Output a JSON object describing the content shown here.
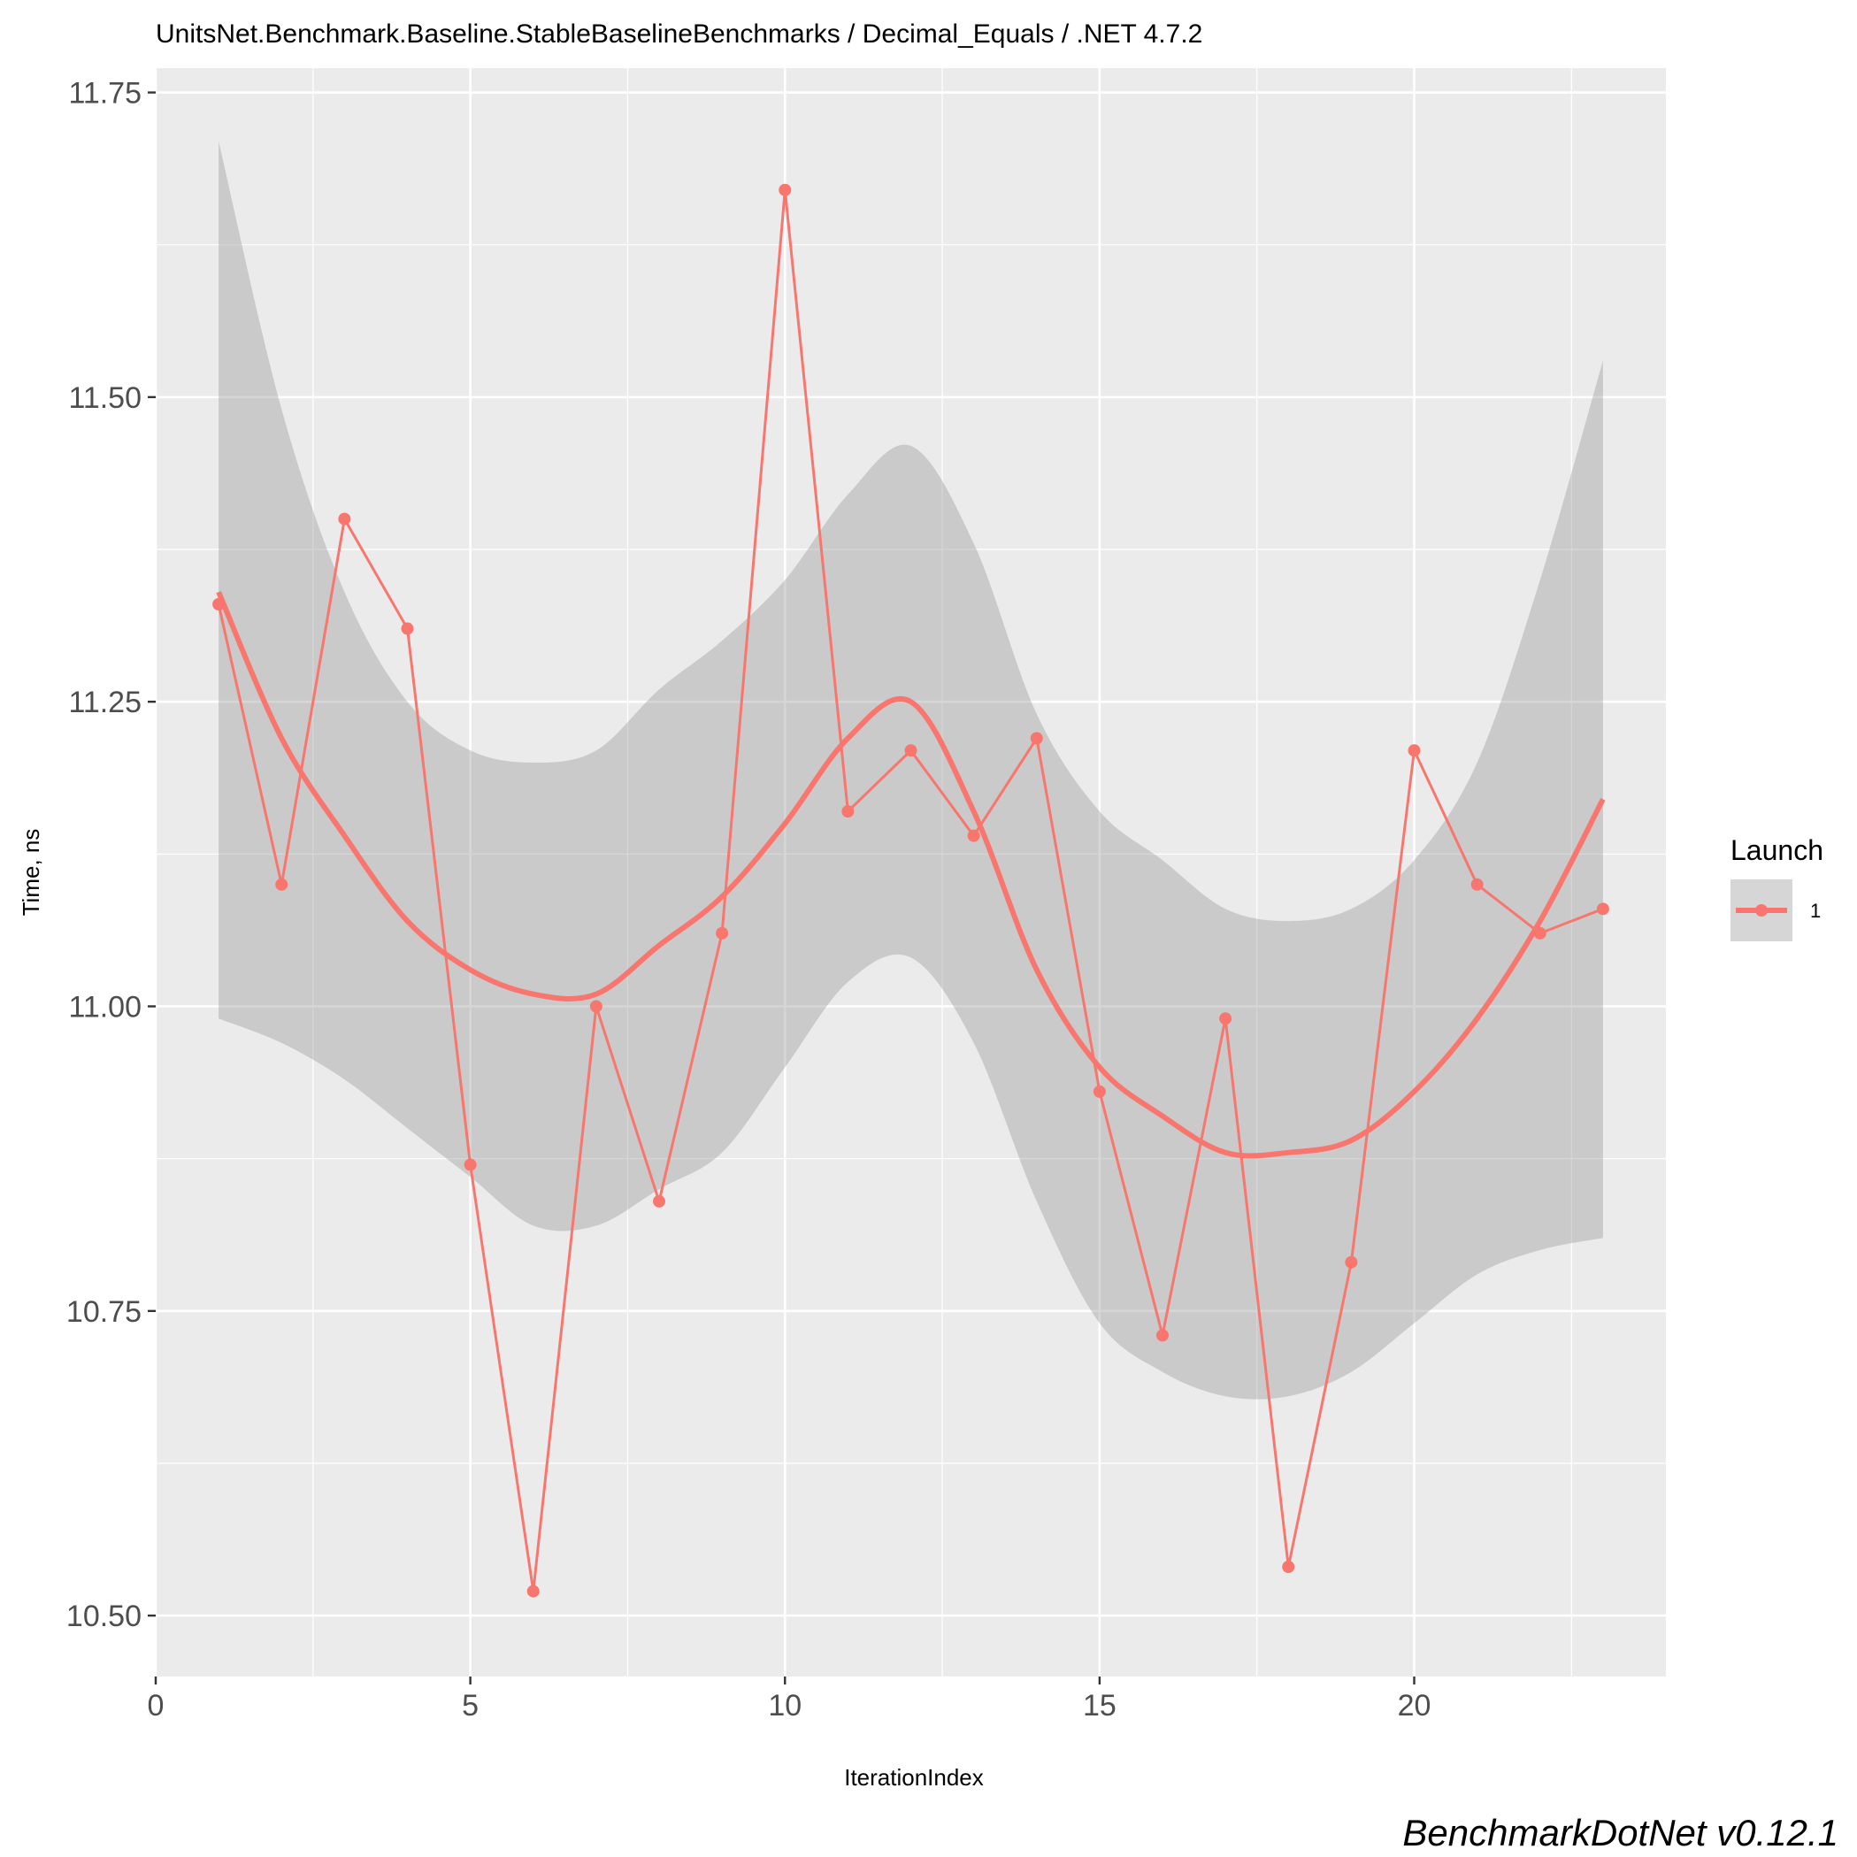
{
  "chart_data": {
    "type": "line",
    "title": "UnitsNet.Benchmark.Baseline.StableBaselineBenchmarks / Decimal_Equals / .NET 4.7.2",
    "xlabel": "IterationIndex",
    "ylabel": "Time, ns",
    "xlim": [
      0,
      24
    ],
    "ylim": [
      10.45,
      11.77
    ],
    "x_ticks": [
      0,
      5,
      10,
      15,
      20
    ],
    "x_tick_labels": [
      "0",
      "5",
      "10",
      "15",
      "20"
    ],
    "y_ticks": [
      10.5,
      10.75,
      11.0,
      11.25,
      11.5,
      11.75
    ],
    "y_tick_labels": [
      "10.50",
      "10.75",
      "11.00",
      "11.25",
      "11.50",
      "11.75"
    ],
    "grid": true,
    "legend": {
      "title": "Launch",
      "position": "right",
      "entries": [
        "1"
      ]
    },
    "series": [
      {
        "name": "1",
        "color": "#F8766D",
        "x": [
          1,
          2,
          3,
          4,
          5,
          6,
          7,
          8,
          9,
          10,
          11,
          12,
          13,
          14,
          15,
          16,
          17,
          18,
          19,
          20,
          21,
          22,
          23
        ],
        "values": [
          11.33,
          11.1,
          11.4,
          11.31,
          10.87,
          10.52,
          11.0,
          10.84,
          11.06,
          11.67,
          11.16,
          11.21,
          11.14,
          11.22,
          10.93,
          10.73,
          10.99,
          10.54,
          10.79,
          11.21,
          11.1,
          11.06,
          11.08
        ]
      }
    ],
    "smooth": {
      "color": "#F8766D",
      "ribbon_color": "#999999",
      "x": [
        1,
        2,
        3,
        4,
        5,
        6,
        7,
        8,
        9,
        10,
        11,
        12,
        13,
        14,
        15,
        16,
        17,
        18,
        19,
        20,
        21,
        22,
        23
      ],
      "fit": [
        11.34,
        11.22,
        11.14,
        11.07,
        11.03,
        11.01,
        11.01,
        11.05,
        11.09,
        11.15,
        11.22,
        11.25,
        11.16,
        11.03,
        10.95,
        10.91,
        10.88,
        10.88,
        10.89,
        10.93,
        10.99,
        11.07,
        11.17
      ],
      "lower": [
        10.99,
        10.97,
        10.94,
        10.9,
        10.86,
        10.82,
        10.82,
        10.85,
        10.88,
        10.95,
        11.02,
        11.04,
        10.97,
        10.84,
        10.74,
        10.7,
        10.68,
        10.68,
        10.7,
        10.74,
        10.78,
        10.8,
        10.81
      ],
      "upper": [
        11.71,
        11.49,
        11.34,
        11.25,
        11.21,
        11.2,
        11.21,
        11.26,
        11.3,
        11.35,
        11.42,
        11.46,
        11.38,
        11.24,
        11.16,
        11.12,
        11.08,
        11.07,
        11.08,
        11.12,
        11.2,
        11.35,
        11.53
      ]
    },
    "caption": "BenchmarkDotNet v0.12.1"
  }
}
